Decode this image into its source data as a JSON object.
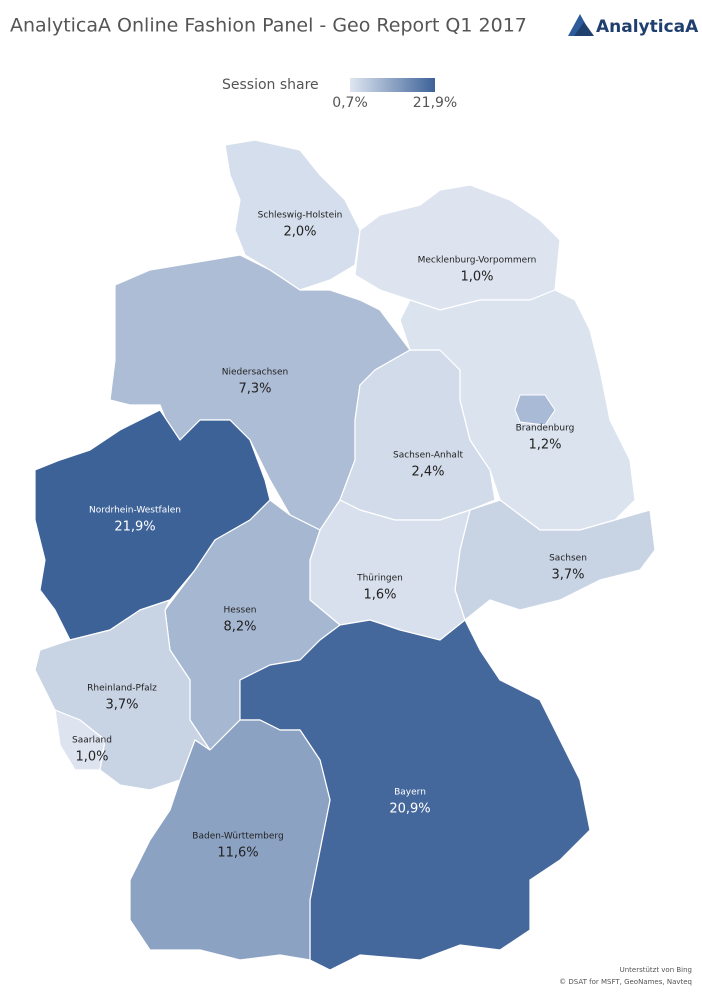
{
  "header": {
    "title": "AnalyticaA Online Fashion Panel - Geo Report Q1 2017",
    "logo": "AnalyticaA"
  },
  "legend": {
    "title": "Session share",
    "min": {
      "value": 0.7,
      "label": "0,7%"
    },
    "max": {
      "value": 21.9,
      "label": "21,9%"
    },
    "colors": [
      "#dfe6f1",
      "#3d6298"
    ]
  },
  "regions": [
    {
      "name": "Schleswig-Holstein",
      "value": 2.0,
      "value_label": "2,0%"
    },
    {
      "name": "Mecklenburg-Vorpommern",
      "value": 1.0,
      "value_label": "1,0%"
    },
    {
      "name": "Niedersachsen",
      "value": 7.3,
      "value_label": "7,3%"
    },
    {
      "name": "Nordrhein-Westfalen",
      "value": 21.9,
      "value_label": "21,9%"
    },
    {
      "name": "Sachsen-Anhalt",
      "value": 2.4,
      "value_label": "2,4%"
    },
    {
      "name": "Brandenburg",
      "value": 1.2,
      "value_label": "1,2%"
    },
    {
      "name": "Sachsen",
      "value": 3.7,
      "value_label": "3,7%"
    },
    {
      "name": "Thüringen",
      "value": 1.6,
      "value_label": "1,6%"
    },
    {
      "name": "Hessen",
      "value": 8.2,
      "value_label": "8,2%"
    },
    {
      "name": "Rheinland-Pfalz",
      "value": 3.7,
      "value_label": "3,7%"
    },
    {
      "name": "Saarland",
      "value": 1.0,
      "value_label": "1,0%"
    },
    {
      "name": "Bayern",
      "value": 20.9,
      "value_label": "20,9%"
    },
    {
      "name": "Baden-Württemberg",
      "value": 11.6,
      "value_label": "11,6%"
    }
  ],
  "attribution": [
    "Unterstützt von Bing",
    "© DSAT for MSFT, GeoNames, Navteq"
  ]
}
